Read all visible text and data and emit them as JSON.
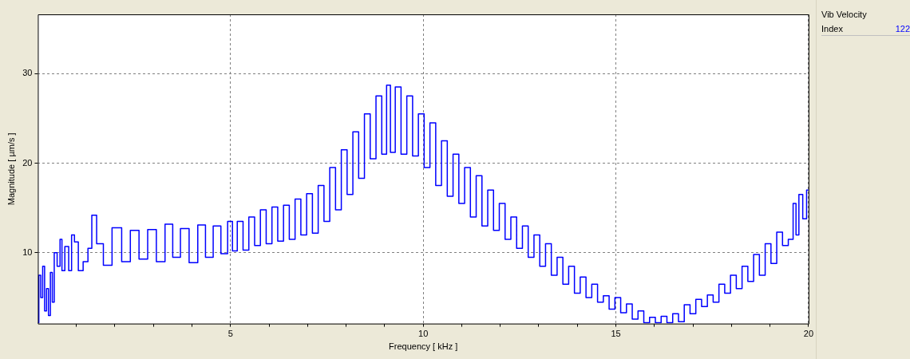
{
  "chart_data": {
    "type": "step",
    "xlabel": "Frequency [ kHz ]",
    "ylabel": "Magnitude [ µm/s ]",
    "annotations": [
      "Vib Velocity",
      "Index",
      "122"
    ],
    "xlim": [
      0,
      20
    ],
    "ylim": [
      2.1,
      36.6
    ],
    "xticks": [
      {
        "value": 1,
        "label": null
      },
      {
        "value": 2,
        "label": null
      },
      {
        "value": 3,
        "label": null
      },
      {
        "value": 4,
        "label": null
      },
      5,
      {
        "value": 6,
        "label": null
      },
      {
        "value": 7,
        "label": null
      },
      {
        "value": 8,
        "label": null
      },
      {
        "value": 9,
        "label": null
      },
      10,
      {
        "value": 11,
        "label": null
      },
      {
        "value": 12,
        "label": null
      },
      {
        "value": 13,
        "label": null
      },
      {
        "value": 14,
        "label": null
      },
      15,
      {
        "value": 16,
        "label": null
      },
      {
        "value": 17,
        "label": null
      },
      {
        "value": 18,
        "label": null
      },
      {
        "value": 19,
        "label": null
      },
      20
    ],
    "yticks": [
      10,
      20,
      30
    ],
    "grid": true,
    "line_style": "solid",
    "marker": "none",
    "series": [
      {
        "color": "#0000ff",
        "x": [
          0,
          0.05,
          0.1,
          0.15,
          0.2,
          0.25,
          0.3,
          0.35,
          0.4,
          0.45,
          0.55,
          0.6,
          0.65,
          0.75,
          0.85,
          0.9,
          1.0,
          1.1,
          1.25,
          1.35,
          1.45,
          1.6,
          1.8,
          2.05,
          2.3,
          2.5,
          2.75,
          2.95,
          3.2,
          3.4,
          3.6,
          3.8,
          4.05,
          4.25,
          4.45,
          4.65,
          4.85,
          5.0,
          5.1,
          5.25,
          5.4,
          5.55,
          5.7,
          5.85,
          6.0,
          6.15,
          6.3,
          6.45,
          6.6,
          6.75,
          6.9,
          7.05,
          7.2,
          7.35,
          7.5,
          7.65,
          7.8,
          7.95,
          8.1,
          8.25,
          8.4,
          8.55,
          8.7,
          8.85,
          9.0,
          9.1,
          9.2,
          9.35,
          9.5,
          9.65,
          9.8,
          9.95,
          10.1,
          10.25,
          10.4,
          10.55,
          10.7,
          10.85,
          11.0,
          11.15,
          11.3,
          11.45,
          11.6,
          11.75,
          11.9,
          12.05,
          12.2,
          12.35,
          12.5,
          12.65,
          12.8,
          12.95,
          13.1,
          13.25,
          13.4,
          13.55,
          13.7,
          13.85,
          14.0,
          14.15,
          14.3,
          14.45,
          14.6,
          14.75,
          14.9,
          15.05,
          15.2,
          15.35,
          15.5,
          15.65,
          15.8,
          15.95,
          16.1,
          16.25,
          16.4,
          16.55,
          16.7,
          16.85,
          17.0,
          17.15,
          17.3,
          17.45,
          17.6,
          17.75,
          17.9,
          18.05,
          18.2,
          18.35,
          18.5,
          18.65,
          18.8,
          18.95,
          19.1,
          19.25,
          19.4,
          19.55,
          19.65,
          19.7,
          19.8,
          19.9,
          20
        ],
        "values": [
          2.2,
          7.5,
          5,
          8.5,
          3.5,
          6,
          3,
          7.8,
          4.5,
          10,
          8.5,
          11.5,
          8,
          10.7,
          8,
          12,
          11.2,
          8,
          9,
          10.5,
          14.2,
          11,
          8.6,
          12.8,
          9,
          12.5,
          9.3,
          12.6,
          9,
          13.2,
          9.5,
          12.7,
          8.9,
          13.1,
          9.5,
          13,
          9.9,
          13.5,
          10.2,
          13.5,
          10.3,
          14,
          10.8,
          14.8,
          11,
          15.1,
          11.3,
          15.3,
          11.5,
          16,
          12,
          16.6,
          12.2,
          17.5,
          13.5,
          19.5,
          14.8,
          21.5,
          16.5,
          23.5,
          18.3,
          25.5,
          20.5,
          27.5,
          21,
          28.7,
          21.2,
          28.5,
          21,
          27.5,
          20.8,
          25.5,
          19.5,
          24.5,
          17.5,
          22.5,
          16.3,
          21,
          15.5,
          19.5,
          14,
          18.6,
          13,
          17,
          12.5,
          15.5,
          11.5,
          14,
          10.5,
          13,
          9.5,
          12,
          8.5,
          11,
          7.5,
          9.5,
          6.5,
          8.5,
          5.5,
          7.3,
          5,
          6.5,
          4.5,
          5.2,
          3.7,
          5,
          3.3,
          4.3,
          2.6,
          3.5,
          2.2,
          2.8,
          2.2,
          2.9,
          2.2,
          3.2,
          2.3,
          4.2,
          3.2,
          4.8,
          4,
          5.3,
          4.5,
          6.5,
          5.5,
          7.5,
          6,
          8.5,
          6.8,
          9.8,
          7.5,
          11,
          8.8,
          12.3,
          10.8,
          11.5,
          15.5,
          12,
          16.5,
          13.8,
          17
        ]
      }
    ]
  }
}
